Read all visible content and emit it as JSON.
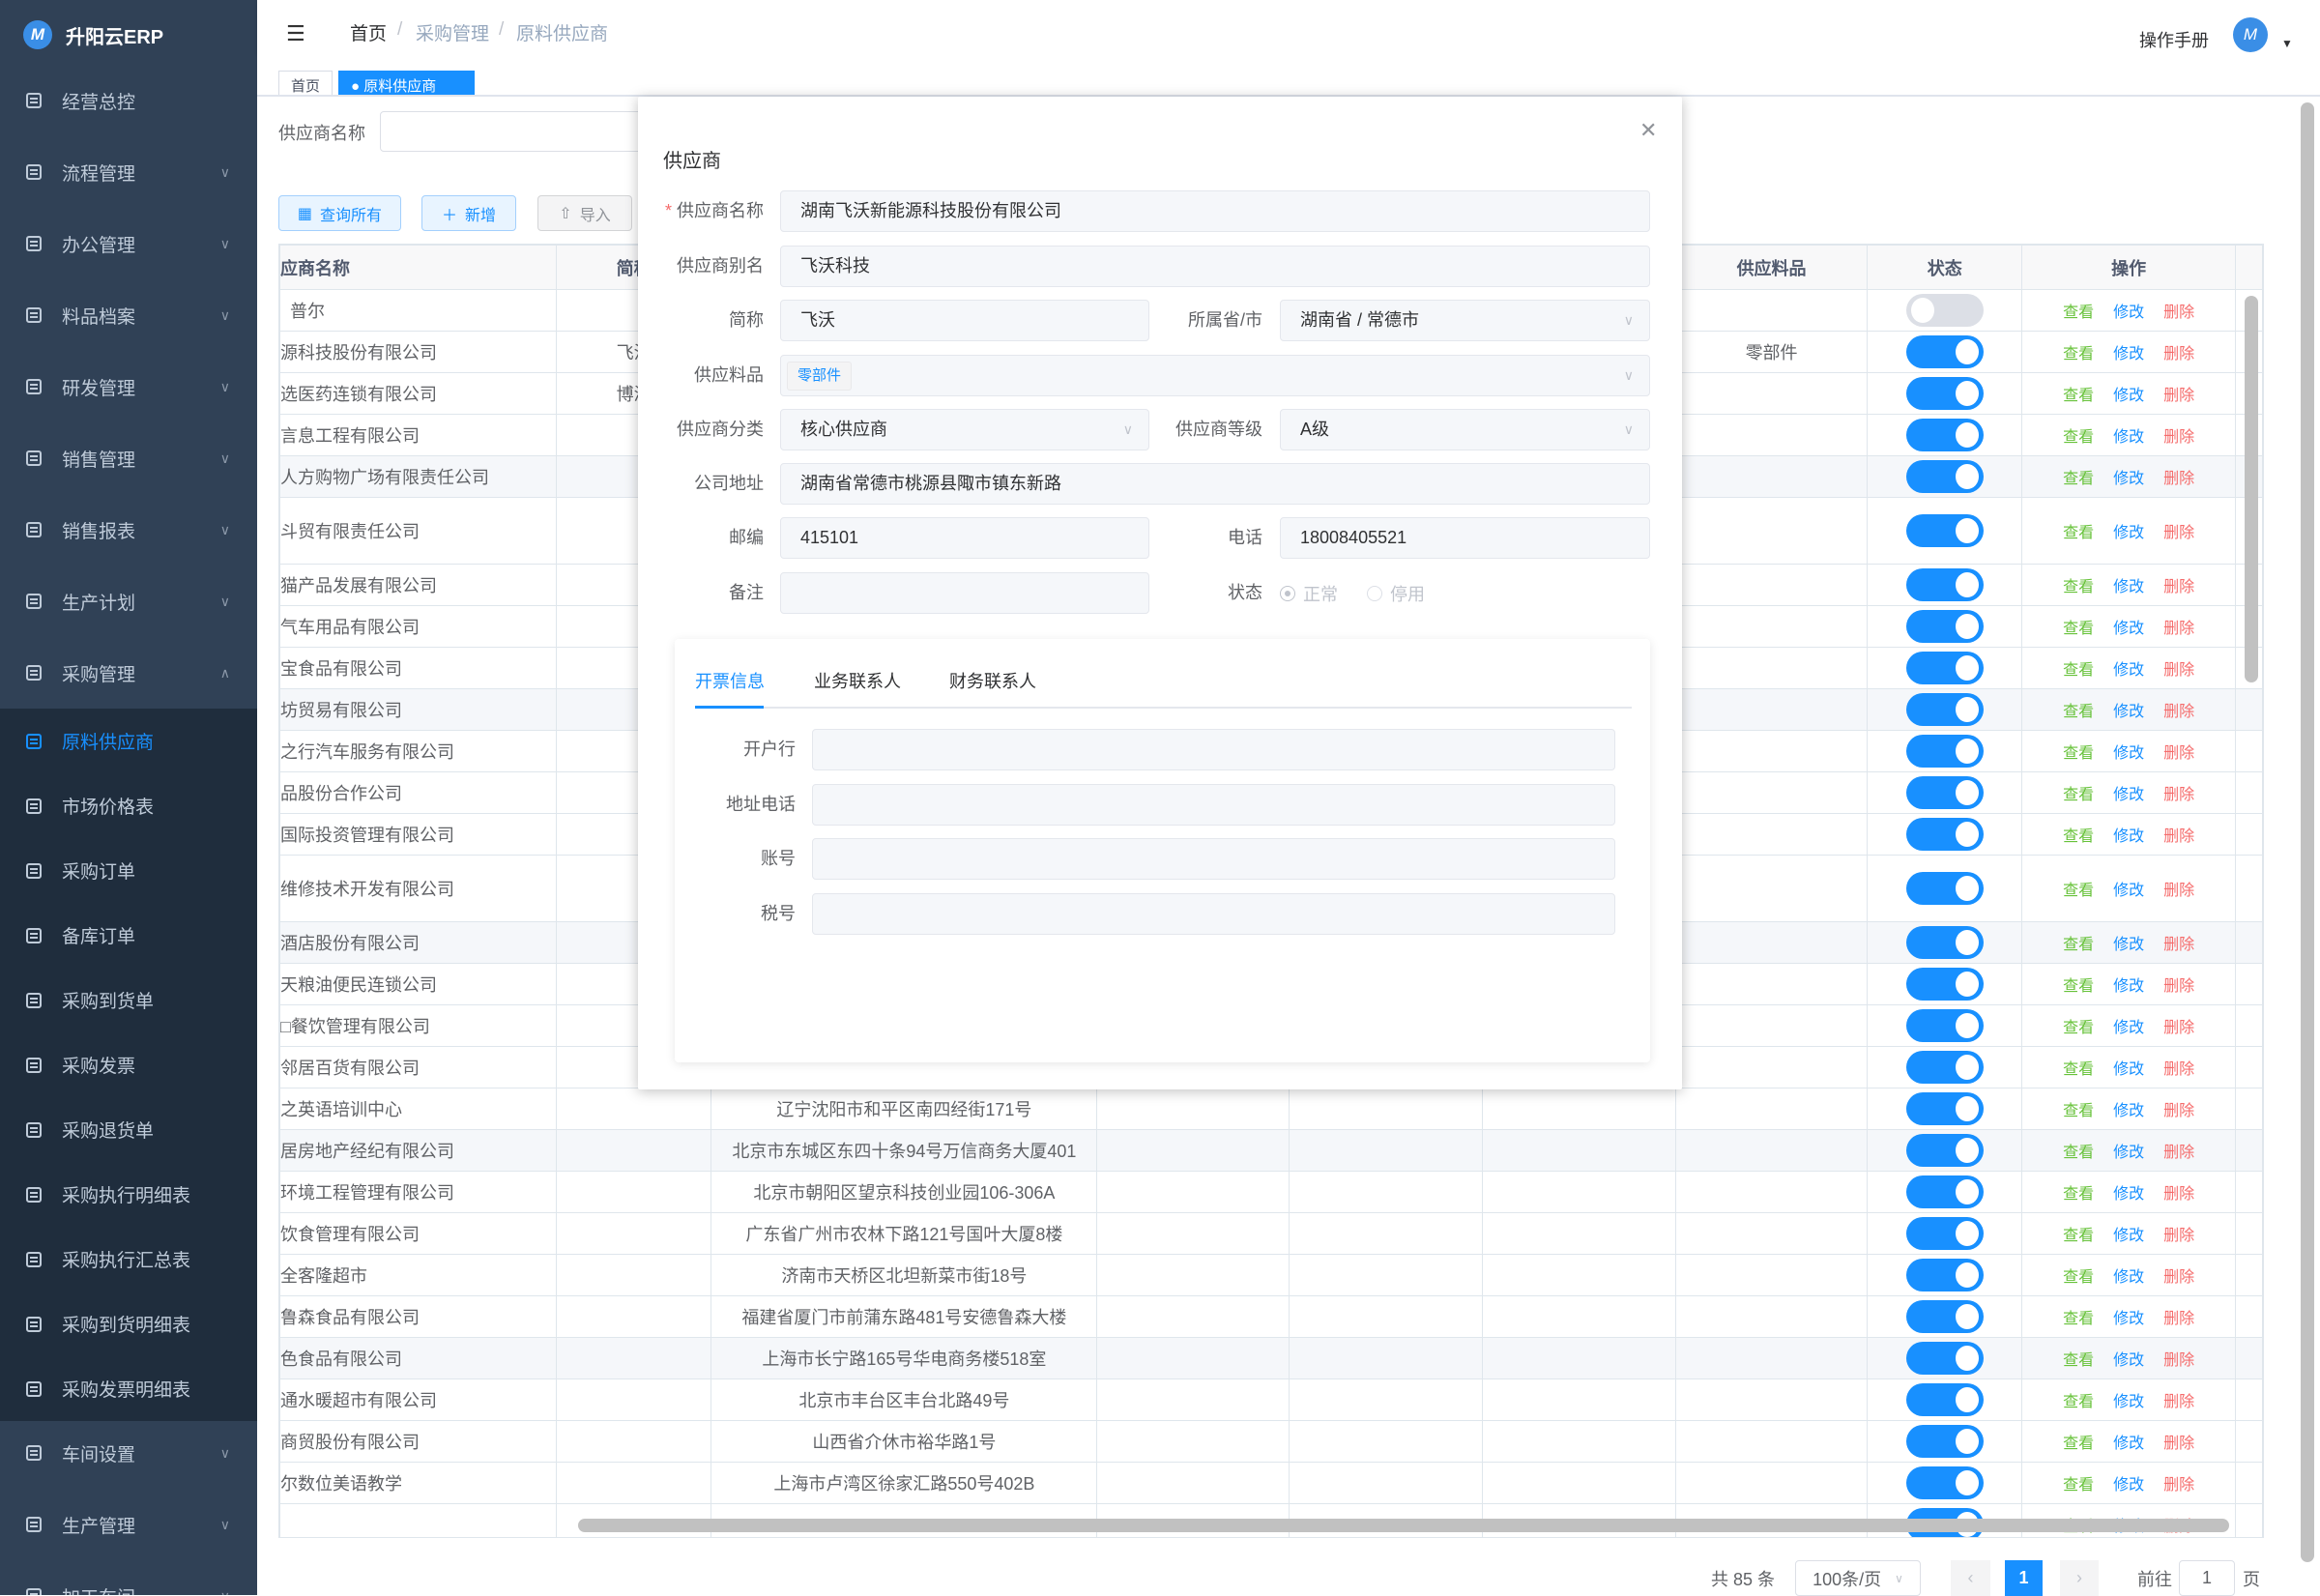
{
  "app": {
    "title": "升阳云ERP",
    "logo_icon": "M-logo"
  },
  "sidebar": {
    "top_items": [
      {
        "label": "经营总控",
        "icon": "bar-chart-icon",
        "chevron": false
      },
      {
        "label": "流程管理",
        "icon": "flow-icon",
        "chevron": true
      },
      {
        "label": "办公管理",
        "icon": "office-icon",
        "chevron": true
      },
      {
        "label": "料品档案",
        "icon": "book-icon",
        "chevron": true
      },
      {
        "label": "研发管理",
        "icon": "rd-icon",
        "chevron": true
      },
      {
        "label": "销售管理",
        "icon": "doc-icon",
        "chevron": true
      },
      {
        "label": "销售报表",
        "icon": "bar-chart-icon",
        "chevron": true
      },
      {
        "label": "生产计划",
        "icon": "doc-icon",
        "chevron": true
      },
      {
        "label": "采购管理",
        "icon": "doc-icon",
        "chevron": true,
        "open": true
      }
    ],
    "sub_items": [
      {
        "label": "原料供应商",
        "active": true
      },
      {
        "label": "市场价格表"
      },
      {
        "label": "采购订单"
      },
      {
        "label": "备库订单"
      },
      {
        "label": "采购到货单"
      },
      {
        "label": "采购发票"
      },
      {
        "label": "采购退货单"
      },
      {
        "label": "采购执行明细表"
      },
      {
        "label": "采购执行汇总表"
      },
      {
        "label": "采购到货明细表"
      },
      {
        "label": "采购发票明细表"
      }
    ],
    "bottom_items": [
      {
        "label": "车间设置",
        "icon": "gear-icon",
        "chevron": true
      },
      {
        "label": "生产管理",
        "icon": "doc-icon",
        "chevron": true
      },
      {
        "label": "加工车间",
        "icon": "doc-icon",
        "chevron": true
      }
    ]
  },
  "header": {
    "breadcrumb": [
      "首页",
      "采购管理",
      "原料供应商"
    ],
    "manual": "操作手册"
  },
  "tabs": [
    {
      "label": "首页"
    },
    {
      "label": "● 原料供应商",
      "active": true
    }
  ],
  "filter": {
    "label": "供应商名称",
    "value": ""
  },
  "toolbar": {
    "query_all": "查询所有",
    "add": "新增",
    "import": "导入"
  },
  "table": {
    "headers": {
      "name": "应商名称",
      "short": "简称",
      "material": "供应料品",
      "status": "状态",
      "ops": "操作"
    },
    "actions": {
      "view": "查看",
      "edit": "修改",
      "delete": "删除"
    },
    "rows": [
      {
        "name": "  普尔",
        "short": "",
        "address": "",
        "material": "",
        "status": false
      },
      {
        "name": "源科技股份有限公司",
        "short": "飞沃",
        "address": "",
        "material": "零部件",
        "status": true
      },
      {
        "name": "选医药连锁有限公司",
        "short": "博济",
        "address": "",
        "material": "",
        "status": true
      },
      {
        "name": "言息工程有限公司",
        "short": "",
        "address": "",
        "material": "",
        "status": true
      },
      {
        "name": "人方购物广场有限责任公司",
        "short": "",
        "address": "",
        "material": "",
        "status": true,
        "hl": true
      },
      {
        "name": "斗贸有限责任公司",
        "short": "",
        "address": "",
        "material": "",
        "status": true,
        "tall": true
      },
      {
        "name": "猫产品发展有限公司",
        "short": "",
        "address": "",
        "material": "",
        "status": true
      },
      {
        "name": "气车用品有限公司",
        "short": "",
        "address": "",
        "material": "",
        "status": true
      },
      {
        "name": "宝食品有限公司",
        "short": "",
        "address": "",
        "material": "",
        "status": true
      },
      {
        "name": "坊贸易有限公司",
        "short": "",
        "address": "",
        "material": "",
        "status": true,
        "hl": true
      },
      {
        "name": "之行汽车服务有限公司",
        "short": "",
        "address": "",
        "material": "",
        "status": true
      },
      {
        "name": "品股份合作公司",
        "short": "",
        "address": "",
        "material": "",
        "status": true
      },
      {
        "name": "国际投资管理有限公司",
        "short": "",
        "address": "",
        "material": "",
        "status": true
      },
      {
        "name": "维修技术开发有限公司",
        "short": "",
        "address": "",
        "material": "",
        "status": true,
        "tall": true
      },
      {
        "name": "酒店股份有限公司",
        "short": "",
        "address": "",
        "material": "",
        "status": true,
        "hl": true
      },
      {
        "name": "天粮油便民连锁公司",
        "short": "",
        "address": "",
        "material": "",
        "status": true
      },
      {
        "name": "□餐饮管理有限公司",
        "short": "",
        "address": "",
        "material": "",
        "status": true
      },
      {
        "name": "邻居百货有限公司",
        "short": "",
        "address": "",
        "material": "",
        "status": true
      },
      {
        "name": "之英语培训中心",
        "short": "",
        "address": "辽宁沈阳市和平区南四经街171号",
        "material": "",
        "status": true
      },
      {
        "name": "居房地产经纪有限公司",
        "short": "",
        "address": "北京市东城区东四十条94号万信商务大厦401",
        "material": "",
        "status": true,
        "hl": true
      },
      {
        "name": "环境工程管理有限公司",
        "short": "",
        "address": "北京市朝阳区望京科技创业园106-306A",
        "material": "",
        "status": true
      },
      {
        "name": "饮食管理有限公司",
        "short": "",
        "address": "广东省广州市农林下路121号国叶大厦8楼",
        "material": "",
        "status": true
      },
      {
        "name": "全客隆超市",
        "short": "",
        "address": "济南市天桥区北坦新菜市街18号",
        "material": "",
        "status": true
      },
      {
        "name": "鲁森食品有限公司",
        "short": "",
        "address": "福建省厦门市前蒲东路481号安德鲁森大楼",
        "material": "",
        "status": true
      },
      {
        "name": "色食品有限公司",
        "short": "",
        "address": "上海市长宁路165号华电商务楼518室",
        "material": "",
        "status": true,
        "hl": true
      },
      {
        "name": "通水暖超市有限公司",
        "short": "",
        "address": "北京市丰台区丰台北路49号",
        "material": "",
        "status": true
      },
      {
        "name": "商贸股份有限公司",
        "short": "",
        "address": "山西省介休市裕华路1号",
        "material": "",
        "status": true
      },
      {
        "name": "尔数位美语教学",
        "short": "",
        "address": "上海市卢湾区徐家汇路550号402B",
        "material": "",
        "status": true
      },
      {
        "name": "",
        "short": "",
        "address": "",
        "material": "",
        "status": true
      }
    ]
  },
  "pagination": {
    "total": "共 85 条",
    "page_size": "100条/页",
    "current": "1",
    "goto_label": "前往",
    "goto_value": "1",
    "page_unit": "页"
  },
  "modal": {
    "title": "供应商",
    "fields": {
      "name": {
        "label": "供应商名称",
        "value": "湖南飞沃新能源科技股份有限公司",
        "required": true
      },
      "alias": {
        "label": "供应商别名",
        "value": "飞沃科技"
      },
      "short": {
        "label": "简称",
        "value": "飞沃"
      },
      "province": {
        "label": "所属省/市",
        "value": "湖南省 / 常德市"
      },
      "material": {
        "label": "供应料品",
        "tag": "零部件"
      },
      "category": {
        "label": "供应商分类",
        "value": "核心供应商"
      },
      "level": {
        "label": "供应商等级",
        "value": "A级"
      },
      "address": {
        "label": "公司地址",
        "value": "湖南省常德市桃源县陬市镇东新路"
      },
      "zip": {
        "label": "邮编",
        "value": "415101"
      },
      "phone": {
        "label": "电话",
        "value": "18008405521"
      },
      "remark": {
        "label": "备注",
        "value": ""
      },
      "status": {
        "label": "状态",
        "options": [
          "正常",
          "停用"
        ],
        "selected": "正常"
      }
    },
    "tabs": [
      "开票信息",
      "业务联系人",
      "财务联系人"
    ],
    "active_tab": "开票信息",
    "invoice": [
      {
        "label": "开户行",
        "value": ""
      },
      {
        "label": "地址电话",
        "value": ""
      },
      {
        "label": "账号",
        "value": ""
      },
      {
        "label": "税号",
        "value": ""
      }
    ]
  },
  "colors": {
    "sidebar": "#304156",
    "submenu": "#1f2d3d",
    "primary": "#1890ff",
    "view": "#67c23a",
    "delete": "#f56c6c"
  }
}
